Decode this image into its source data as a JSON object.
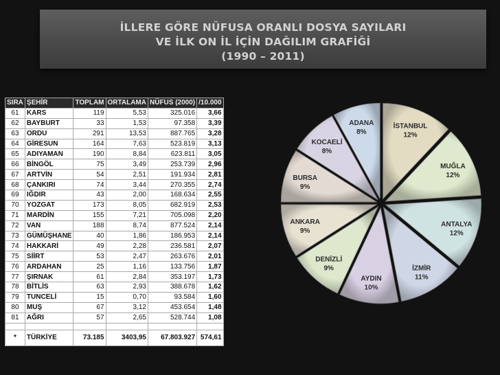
{
  "title": {
    "line1": "İLLERE GÖRE NÜFUSA ORANLI DOSYA SAYILARI",
    "line2": "VE İLK ON İL İÇİN DAĞILIM GRAFİĞİ",
    "line3": "(1990 – 2011)"
  },
  "table": {
    "headers": [
      "SIRA",
      "ŞEHİR",
      "TOPLAM",
      "ORTALAMA",
      "NÜFUS (2000)",
      "/10.000"
    ],
    "rows": [
      [
        "61",
        "KARS",
        "119",
        "5,53",
        "325.016",
        "3,66"
      ],
      [
        "62",
        "BAYBURT",
        "33",
        "1,53",
        "97.358",
        "3,39"
      ],
      [
        "63",
        "ORDU",
        "291",
        "13,53",
        "887.765",
        "3,28"
      ],
      [
        "64",
        "GİRESUN",
        "164",
        "7,63",
        "523.819",
        "3,13"
      ],
      [
        "65",
        "ADIYAMAN",
        "190",
        "8,84",
        "623.811",
        "3,05"
      ],
      [
        "66",
        "BİNGÖL",
        "75",
        "3,49",
        "253.739",
        "2,96"
      ],
      [
        "67",
        "ARTVİN",
        "54",
        "2,51",
        "191.934",
        "2,81"
      ],
      [
        "68",
        "ÇANKIRI",
        "74",
        "3,44",
        "270.355",
        "2,74"
      ],
      [
        "69",
        "IĞDIR",
        "43",
        "2,00",
        "168.634",
        "2,55"
      ],
      [
        "70",
        "YOZGAT",
        "173",
        "8,05",
        "682.919",
        "2,53"
      ],
      [
        "71",
        "MARDİN",
        "155",
        "7,21",
        "705.098",
        "2,20"
      ],
      [
        "72",
        "VAN",
        "188",
        "8,74",
        "877.524",
        "2,14"
      ],
      [
        "73",
        "GÜMÜŞHANE",
        "40",
        "1,86",
        "186.953",
        "2,14"
      ],
      [
        "74",
        "HAKKARİ",
        "49",
        "2,28",
        "236.581",
        "2,07"
      ],
      [
        "75",
        "SİİRT",
        "53",
        "2,47",
        "263.676",
        "2,01"
      ],
      [
        "76",
        "ARDAHAN",
        "25",
        "1,16",
        "133.756",
        "1,87"
      ],
      [
        "77",
        "ŞIRNAK",
        "61",
        "2,84",
        "353.197",
        "1,73"
      ],
      [
        "78",
        "BİTLİS",
        "63",
        "2,93",
        "388.678",
        "1,62"
      ],
      [
        "79",
        "TUNCELİ",
        "15",
        "0,70",
        "93.584",
        "1,60"
      ],
      [
        "80",
        "MUŞ",
        "67",
        "3,12",
        "453.654",
        "1,48"
      ],
      [
        "81",
        "AĞRI",
        "57",
        "2,65",
        "528.744",
        "1,08"
      ]
    ],
    "total": [
      "*",
      "TÜRKİYE",
      "73.185",
      "3403,95",
      "67.803.927",
      "574,61"
    ]
  },
  "chart_data": {
    "type": "pie",
    "categories": [
      "İSTANBUL",
      "MUĞLA",
      "ANTALYA",
      "İZMİR",
      "AYDIN",
      "DENİZLİ",
      "ANKARA",
      "BURSA",
      "KOCAELİ",
      "ADANA"
    ],
    "values": [
      12,
      12,
      12,
      11,
      10,
      9,
      9,
      9,
      8,
      8
    ],
    "value_labels": [
      "12%",
      "12%",
      "12%",
      "11%",
      "10%",
      "9%",
      "9%",
      "9%",
      "8%",
      "8%"
    ],
    "colors": [
      "#e3dcc3",
      "#dfe9cd",
      "#cfe3e2",
      "#cfd6e6",
      "#d8d0e3",
      "#dde8cc",
      "#e8e2d2",
      "#e3dad3",
      "#d9d4e4",
      "#cddaea"
    ],
    "legend": "none"
  }
}
